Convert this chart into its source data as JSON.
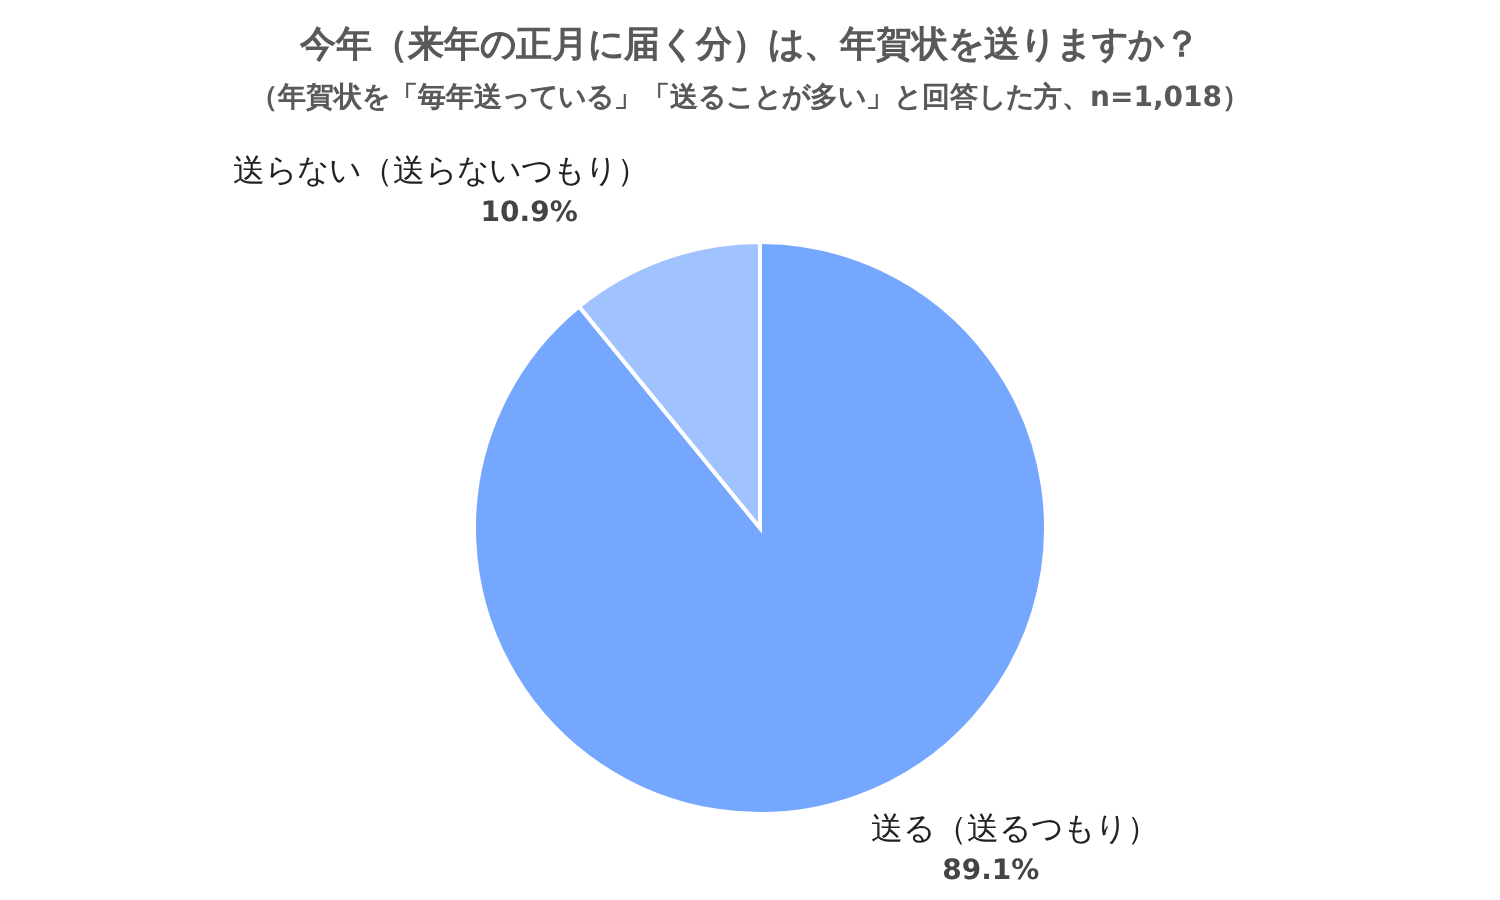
{
  "chart_data": {
    "type": "pie",
    "title": "今年（来年の正月に届く分）は、年賀状を送りますか？",
    "subtitle": "（年賀状を「毎年送っている」「送ることが多い」と回答した方、n=1,018）",
    "categories": [
      "送る（送るつもり）",
      "送らない（送らないつもり）"
    ],
    "values": [
      89.1,
      10.9
    ],
    "colors": [
      "#75a7ff",
      "#a0c2ff"
    ],
    "value_labels": [
      "89.1%",
      "10.9%"
    ]
  }
}
